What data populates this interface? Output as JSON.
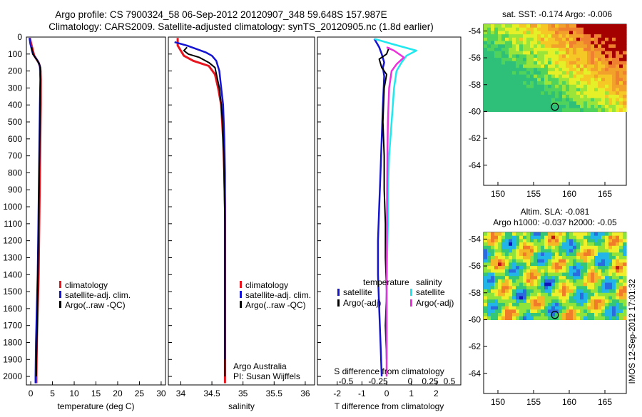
{
  "header": {
    "title_line1": "Argo profile: CS 7900324_58 06-Sep-2012 20120907_348 59.648S 157.987E",
    "title_line2": "Climatology: CARS2009. Satellite-adjusted climatology: synTS_20120905.nc (1.8d earlier)"
  },
  "side_stamp": "IMOS 12-Sep-2012 17:01:32",
  "colors": {
    "climatology": "#e8141e",
    "satellite": "#1414d2",
    "argo": "#000000",
    "sal_satellite": "#20e8ee",
    "sal_argo": "#ee30dc"
  },
  "chart_data": [
    {
      "type": "line",
      "panel": "temperature",
      "xlabel": "temperature (deg C)",
      "ylabel": "",
      "xlim": [
        -1,
        31
      ],
      "ylim": [
        2050,
        0
      ],
      "y_inverted": true,
      "xticks": [
        0,
        5,
        10,
        15,
        20,
        25,
        30
      ],
      "yticks": [
        0,
        100,
        200,
        300,
        400,
        500,
        600,
        700,
        800,
        900,
        1000,
        1100,
        1200,
        1300,
        1400,
        1500,
        1600,
        1700,
        1800,
        1900,
        2000
      ],
      "legend": [
        "climatology",
        "satellite-adj. clim.",
        "Argo(..raw -QC)"
      ],
      "series": [
        {
          "name": "climatology",
          "color_key": "climatology",
          "points": [
            [
              -0.2,
              5
            ],
            [
              0.1,
              40
            ],
            [
              0.8,
              110
            ],
            [
              1.8,
              150
            ],
            [
              2.2,
              180
            ],
            [
              2.3,
              250
            ],
            [
              2.3,
              400
            ],
            [
              2.2,
              600
            ],
            [
              2.1,
              800
            ],
            [
              2.0,
              1000
            ],
            [
              1.9,
              1200
            ],
            [
              1.8,
              1400
            ],
            [
              1.6,
              1600
            ],
            [
              1.4,
              1800
            ],
            [
              1.3,
              2000
            ],
            [
              1.3,
              2040
            ]
          ]
        },
        {
          "name": "satellite-adj. clim.",
          "color_key": "satellite",
          "points": [
            [
              -0.3,
              5
            ],
            [
              -0.1,
              40
            ],
            [
              0.5,
              100
            ],
            [
              1.6,
              140
            ],
            [
              2.1,
              170
            ],
            [
              2.2,
              250
            ],
            [
              2.1,
              400
            ],
            [
              2.0,
              600
            ],
            [
              1.9,
              800
            ],
            [
              1.8,
              1000
            ],
            [
              1.7,
              1200
            ],
            [
              1.6,
              1400
            ],
            [
              1.4,
              1600
            ],
            [
              1.2,
              1800
            ],
            [
              1.1,
              2000
            ],
            [
              1.1,
              2040
            ]
          ]
        },
        {
          "name": "Argo(..raw -QC)",
          "color_key": "argo",
          "points": [
            [
              0.2,
              60
            ],
            [
              0.5,
              100
            ],
            [
              1.3,
              130
            ],
            [
              2.0,
              160
            ],
            [
              2.3,
              200
            ],
            [
              2.2,
              300
            ],
            [
              2.1,
              500
            ],
            [
              2.0,
              700
            ],
            [
              1.9,
              900
            ],
            [
              1.8,
              1100
            ],
            [
              1.7,
              1300
            ],
            [
              1.6,
              1500
            ],
            [
              1.5,
              1700
            ],
            [
              1.3,
              1900
            ],
            [
              1.3,
              2000
            ]
          ]
        }
      ]
    },
    {
      "type": "line",
      "panel": "salinity",
      "xlabel": "salinity",
      "ylabel": "",
      "xlim": [
        33.8,
        36.15
      ],
      "ylim": [
        2050,
        0
      ],
      "y_inverted": true,
      "xticks": [
        34,
        34.5,
        35,
        35.5,
        36
      ],
      "legend": [
        "climatology",
        "satellite-adj. clim.",
        "Argo(..raw -QC)"
      ],
      "annotation": [
        "Argo Australia",
        "PI: Susan Wijffels"
      ],
      "series": [
        {
          "name": "climatology",
          "color_key": "climatology",
          "points": [
            [
              33.95,
              5
            ],
            [
              33.95,
              50
            ],
            [
              34.05,
              110
            ],
            [
              34.2,
              140
            ],
            [
              34.45,
              170
            ],
            [
              34.55,
              220
            ],
            [
              34.6,
              300
            ],
            [
              34.65,
              400
            ],
            [
              34.68,
              600
            ],
            [
              34.7,
              800
            ],
            [
              34.71,
              1000
            ],
            [
              34.71,
              1200
            ],
            [
              34.71,
              1400
            ],
            [
              34.71,
              1600
            ],
            [
              34.71,
              1800
            ],
            [
              34.71,
              2000
            ],
            [
              34.71,
              2040
            ]
          ]
        },
        {
          "name": "satellite-adj. clim.",
          "color_key": "satellite",
          "points": [
            [
              33.9,
              30
            ],
            [
              34.1,
              50
            ],
            [
              34.25,
              70
            ],
            [
              34.4,
              90
            ],
            [
              34.5,
              110
            ],
            [
              34.57,
              140
            ],
            [
              34.62,
              200
            ],
            [
              34.65,
              300
            ],
            [
              34.68,
              400
            ],
            [
              34.7,
              600
            ],
            [
              34.71,
              800
            ],
            [
              34.71,
              1000
            ],
            [
              34.71,
              1200
            ],
            [
              34.71,
              1400
            ],
            [
              34.71,
              1600
            ],
            [
              34.71,
              1800
            ],
            [
              34.71,
              1900
            ]
          ]
        },
        {
          "name": "Argo(..raw -QC)",
          "color_key": "argo",
          "points": [
            [
              34.1,
              60
            ],
            [
              34.05,
              80
            ],
            [
              34.12,
              100
            ],
            [
              34.3,
              120
            ],
            [
              34.45,
              150
            ],
            [
              34.55,
              180
            ],
            [
              34.62,
              300
            ],
            [
              34.65,
              400
            ],
            [
              34.67,
              500
            ],
            [
              34.69,
              700
            ],
            [
              34.7,
              900
            ],
            [
              34.71,
              1100
            ],
            [
              34.71,
              1300
            ],
            [
              34.71,
              1500
            ],
            [
              34.71,
              1700
            ],
            [
              34.71,
              1900
            ],
            [
              34.71,
              2000
            ]
          ]
        }
      ]
    },
    {
      "type": "line",
      "panel": "differences",
      "xlabel": "T difference from climatology",
      "top_xlabel": "S difference from climatology",
      "xlim": [
        -2.8,
        3.0
      ],
      "ylim": [
        2050,
        0
      ],
      "y_inverted": true,
      "xticks": [
        -2,
        -1,
        0,
        1,
        2
      ],
      "top_xticks_text": [
        "-0.5",
        "-0.25",
        "0",
        "0.25",
        "0.5"
      ],
      "legend_titles": [
        "temperature",
        "salinity"
      ],
      "legend": [
        "satellite",
        "Argo(-adj)",
        "satellite",
        "Argo(-adj)"
      ],
      "series": [
        {
          "name": "temperature satellite",
          "color_key": "satellite",
          "points": [
            [
              -0.5,
              10
            ],
            [
              -0.3,
              60
            ],
            [
              -0.2,
              100
            ],
            [
              -0.1,
              150
            ],
            [
              -0.15,
              180
            ],
            [
              -0.1,
              230
            ],
            [
              -0.15,
              400
            ],
            [
              -0.2,
              600
            ],
            [
              -0.25,
              800
            ],
            [
              -0.3,
              1000
            ],
            [
              -0.35,
              1200
            ],
            [
              -0.35,
              1400
            ],
            [
              -0.3,
              1600
            ],
            [
              -0.25,
              1800
            ],
            [
              -0.2,
              2000
            ]
          ]
        },
        {
          "name": "temperature Argo(-adj)",
          "color_key": "argo",
          "points": [
            [
              0.1,
              60
            ],
            [
              0.0,
              100
            ],
            [
              -0.3,
              130
            ],
            [
              -0.2,
              180
            ],
            [
              0.0,
              220
            ],
            [
              -0.1,
              300
            ],
            [
              -0.15,
              500
            ],
            [
              -0.1,
              700
            ],
            [
              -0.1,
              900
            ],
            [
              -0.05,
              1100
            ],
            [
              -0.05,
              1300
            ],
            [
              0.0,
              1500
            ],
            [
              -0.05,
              1700
            ],
            [
              0.0,
              1900
            ],
            [
              0.0,
              2000
            ]
          ]
        },
        {
          "name": "salinity satellite",
          "color_key": "sal_satellite",
          "points": [
            [
              -0.5,
              10
            ],
            [
              0.2,
              40
            ],
            [
              1.2,
              80
            ],
            [
              0.8,
              110
            ],
            [
              0.6,
              150
            ],
            [
              0.4,
              200
            ],
            [
              0.3,
              300
            ],
            [
              0.2,
              500
            ],
            [
              0.1,
              700
            ],
            [
              0.05,
              900
            ],
            [
              0.05,
              1100
            ],
            [
              0.02,
              1300
            ],
            [
              0.0,
              1500
            ],
            [
              0.0,
              1700
            ],
            [
              0.0,
              1900
            ]
          ]
        },
        {
          "name": "salinity Argo(-adj)",
          "color_key": "sal_argo",
          "points": [
            [
              0.0,
              60
            ],
            [
              0.3,
              80
            ],
            [
              0.7,
              120
            ],
            [
              0.4,
              160
            ],
            [
              0.2,
              200
            ],
            [
              0.1,
              300
            ],
            [
              0.05,
              500
            ],
            [
              0.03,
              700
            ],
            [
              0.02,
              900
            ],
            [
              0.01,
              1100
            ],
            [
              0.0,
              1300
            ],
            [
              0.0,
              1500
            ],
            [
              0.0,
              1700
            ],
            [
              0.0,
              1900
            ],
            [
              0.0,
              2000
            ]
          ]
        }
      ]
    },
    {
      "type": "heatmap",
      "panel": "sst_map",
      "title": "sat. SST: -0.174 Argo: -0.006",
      "xlim": [
        148,
        168
      ],
      "ylim": [
        -65.5,
        -53.5
      ],
      "xticks": [
        150,
        155,
        160,
        165
      ],
      "yticks": [
        -54,
        -56,
        -58,
        -60,
        -62,
        -64
      ],
      "data_extent_lat": [
        -60,
        -53.5
      ],
      "argo_position": {
        "lon": 157.987,
        "lat": -59.648
      }
    },
    {
      "type": "heatmap",
      "panel": "sla_map",
      "title": "Altim. SLA: -0.081",
      "subtitle": "Argo h1000: -0.037 h2000: -0.05",
      "xlim": [
        148,
        168
      ],
      "ylim": [
        -65.5,
        -53.5
      ],
      "xticks": [
        150,
        155,
        160,
        165
      ],
      "yticks": [
        -54,
        -56,
        -58,
        -60,
        -62,
        -64
      ],
      "data_extent_lat": [
        -60,
        -53.5
      ],
      "argo_position": {
        "lon": 157.987,
        "lat": -59.648
      }
    }
  ]
}
